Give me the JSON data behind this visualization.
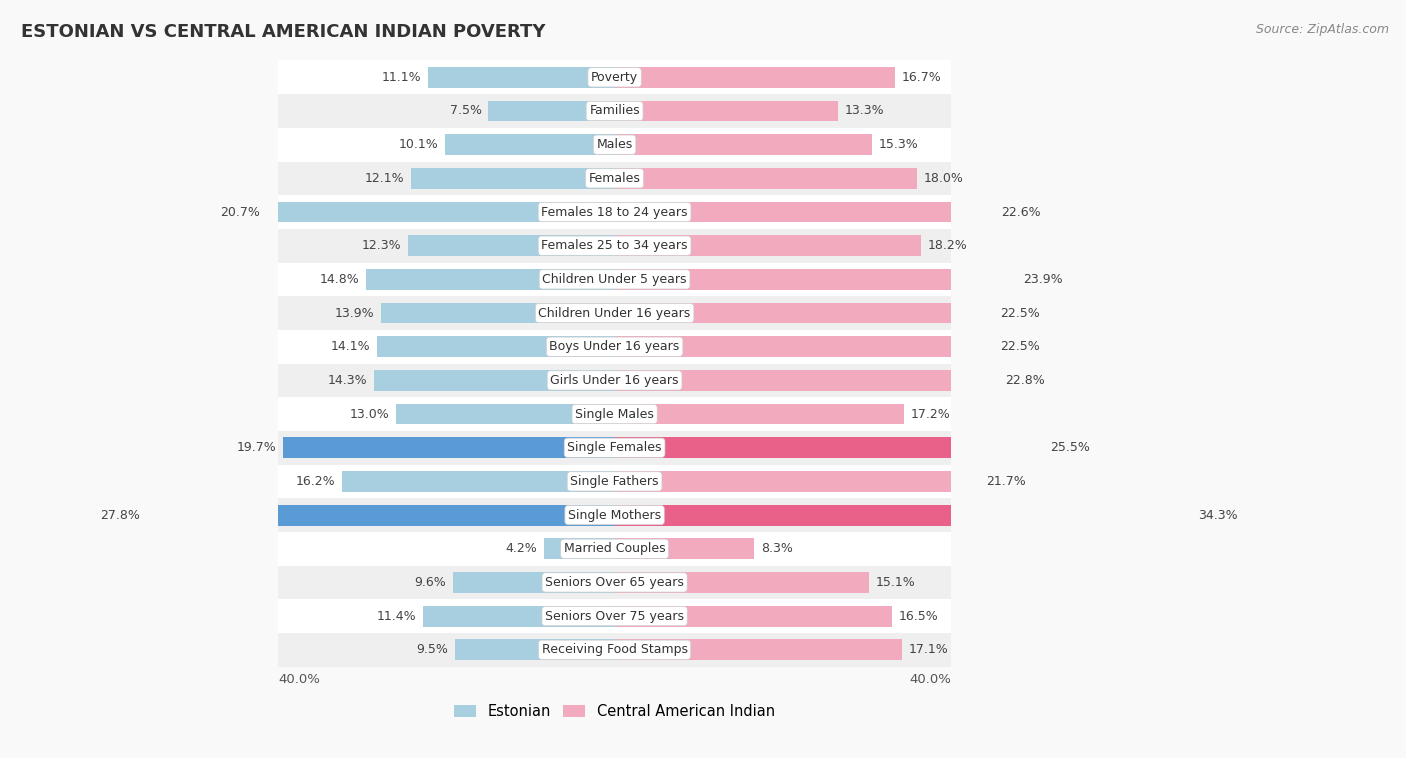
{
  "title": "ESTONIAN VS CENTRAL AMERICAN INDIAN POVERTY",
  "source": "Source: ZipAtlas.com",
  "categories": [
    "Poverty",
    "Families",
    "Males",
    "Females",
    "Females 18 to 24 years",
    "Females 25 to 34 years",
    "Children Under 5 years",
    "Children Under 16 years",
    "Boys Under 16 years",
    "Girls Under 16 years",
    "Single Males",
    "Single Females",
    "Single Fathers",
    "Single Mothers",
    "Married Couples",
    "Seniors Over 65 years",
    "Seniors Over 75 years",
    "Receiving Food Stamps"
  ],
  "estonian": [
    11.1,
    7.5,
    10.1,
    12.1,
    20.7,
    12.3,
    14.8,
    13.9,
    14.1,
    14.3,
    13.0,
    19.7,
    16.2,
    27.8,
    4.2,
    9.6,
    11.4,
    9.5
  ],
  "central_american_indian": [
    16.7,
    13.3,
    15.3,
    18.0,
    22.6,
    18.2,
    23.9,
    22.5,
    22.5,
    22.8,
    17.2,
    25.5,
    21.7,
    34.3,
    8.3,
    15.1,
    16.5,
    17.1
  ],
  "estonian_color": "#a8cfe0",
  "central_american_indian_color": "#f2aabf",
  "highlight_estonian_color": "#5b9bd5",
  "highlight_cai_color": "#e96088",
  "bar_height": 0.62,
  "xlim_max": 40.0,
  "background_color": "#f9f9f9",
  "row_color_light": "#ffffff",
  "row_color_dark": "#efefef",
  "legend_estonian": "Estonian",
  "legend_cai": "Central American Indian",
  "highlight_indices": [
    11,
    13
  ],
  "value_fontsize": 9,
  "label_fontsize": 9,
  "title_fontsize": 13,
  "source_fontsize": 9
}
